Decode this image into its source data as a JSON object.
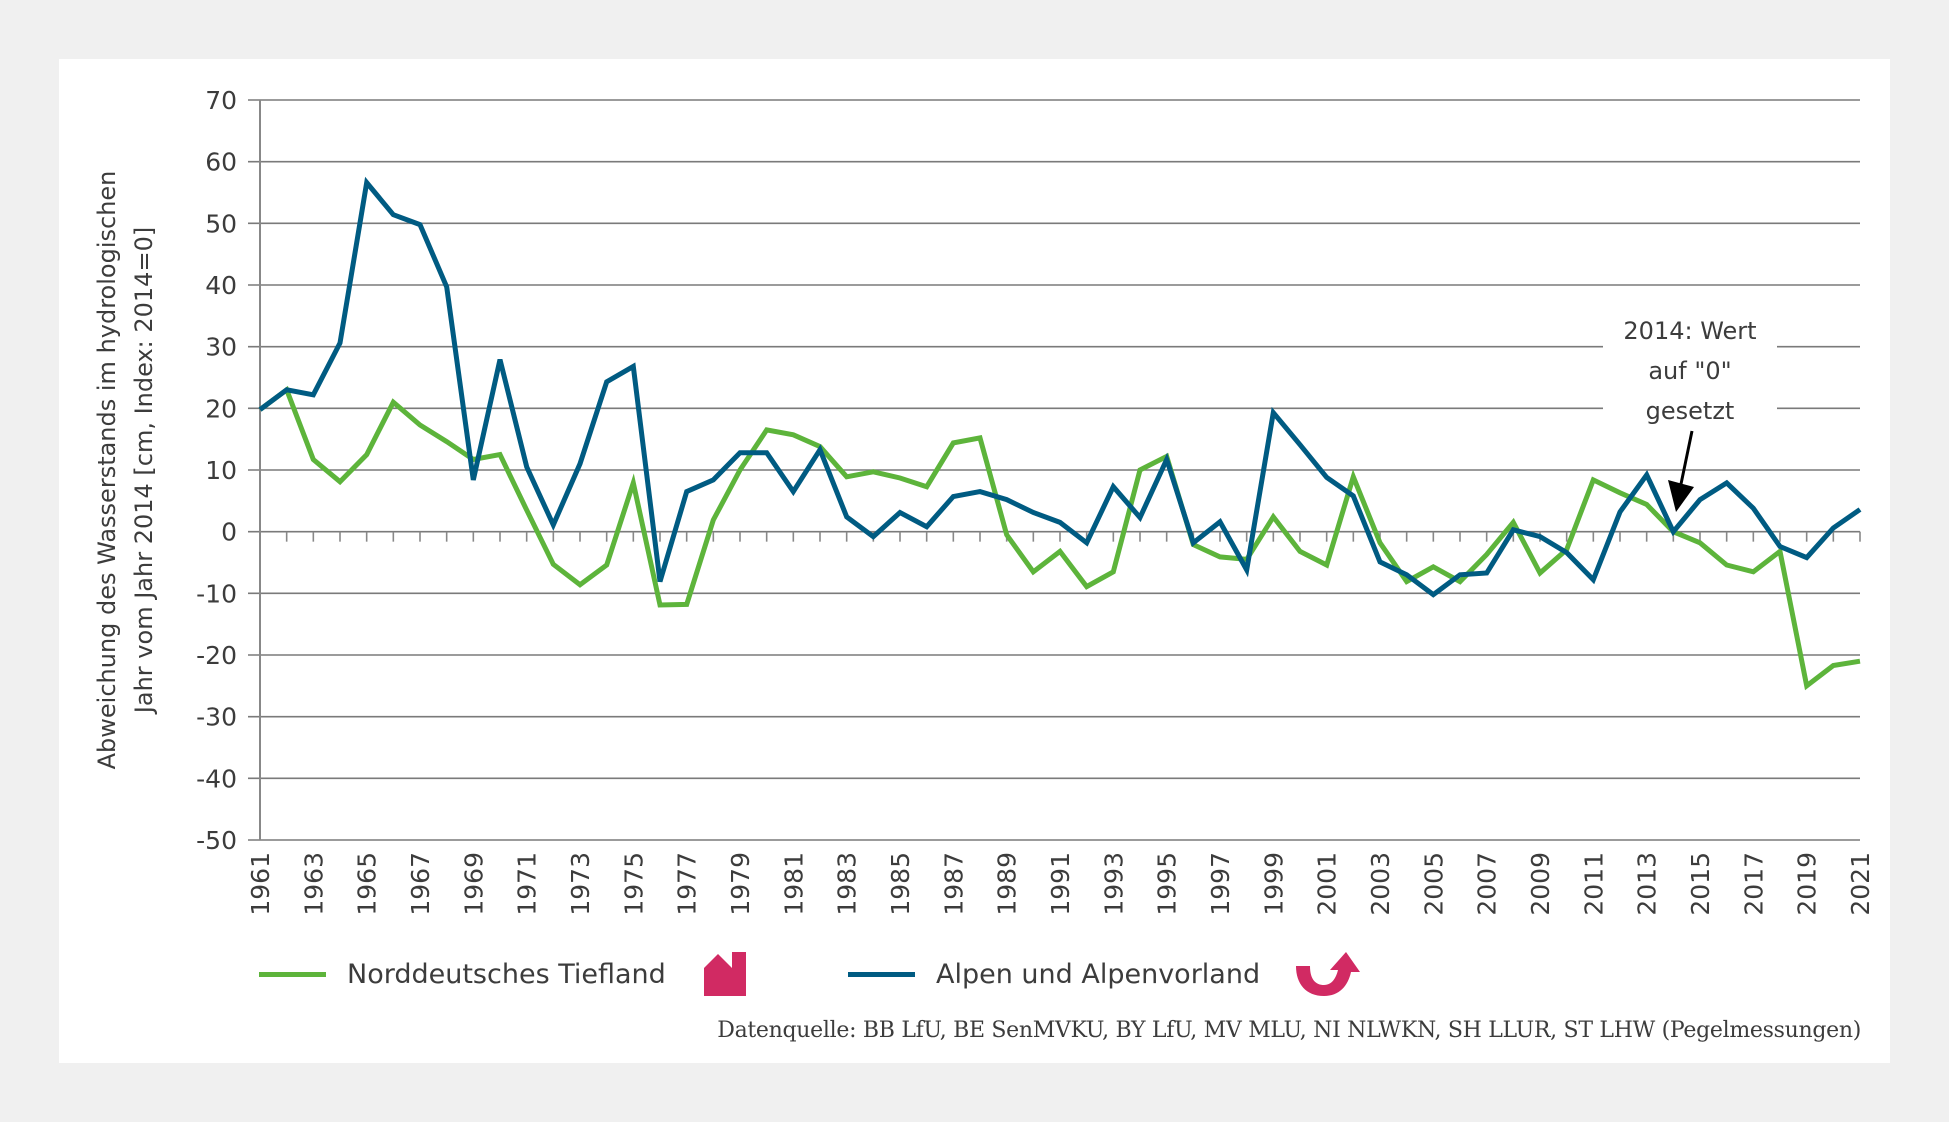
{
  "chart_data": {
    "type": "line",
    "ylabel_lines": [
      "Abweichung des Wasserstands im hydrologischen",
      "Jahr vom Jahr 2014 [cm, Index: 2014=0]"
    ],
    "ylim": [
      -50,
      70
    ],
    "yticks": [
      70,
      60,
      50,
      40,
      30,
      20,
      10,
      0,
      -10,
      -20,
      -30,
      -40,
      -50
    ],
    "xlim": [
      1961,
      2021
    ],
    "xtick_labels": [
      "1961",
      "1963",
      "1965",
      "1967",
      "1969",
      "1971",
      "1973",
      "1975",
      "1977",
      "1979",
      "1981",
      "1983",
      "1985",
      "1987",
      "1989",
      "1991",
      "1993",
      "1995",
      "1997",
      "1999",
      "2001",
      "2003",
      "2005",
      "2007",
      "2009",
      "2011",
      "2013",
      "2015",
      "2017",
      "2019",
      "2021"
    ],
    "grid": true,
    "legend_position": "bottom",
    "x": [
      1961,
      1962,
      1963,
      1964,
      1965,
      1966,
      1967,
      1968,
      1969,
      1970,
      1971,
      1972,
      1973,
      1974,
      1975,
      1976,
      1977,
      1978,
      1979,
      1980,
      1981,
      1982,
      1983,
      1984,
      1985,
      1986,
      1987,
      1988,
      1989,
      1990,
      1991,
      1992,
      1993,
      1994,
      1995,
      1996,
      1997,
      1998,
      1999,
      2000,
      2001,
      2002,
      2003,
      2004,
      2005,
      2006,
      2007,
      2008,
      2009,
      2010,
      2011,
      2012,
      2013,
      2014,
      2015,
      2016,
      2017,
      2018,
      2019,
      2020,
      2021
    ],
    "series": [
      {
        "name": "Norddeutsches Tiefland",
        "color": "#5db43b",
        "trend_icon": "trend-down-arrow-icon",
        "values": [
          19.8,
          23.0,
          11.7,
          8.1,
          12.5,
          21.0,
          17.3,
          14.6,
          11.7,
          12.5,
          3.5,
          -5.3,
          -8.6,
          -5.4,
          7.9,
          -11.9,
          -11.8,
          1.9,
          10.0,
          16.5,
          15.7,
          13.8,
          8.9,
          9.7,
          8.7,
          7.3,
          14.4,
          15.2,
          -0.5,
          -6.5,
          -3.2,
          -8.9,
          -6.5,
          10.0,
          12.2,
          -2.1,
          -4.1,
          -4.5,
          2.4,
          -3.2,
          -5.4,
          8.9,
          -1.8,
          -8.1,
          -5.7,
          -8.1,
          -3.7,
          1.5,
          -6.7,
          -2.9,
          8.4,
          6.3,
          4.4,
          0.0,
          -1.8,
          -5.4,
          -6.5,
          -3.2,
          -25.0,
          -21.7,
          -21.0
        ]
      },
      {
        "name": "Alpen und Alpenvorland",
        "color": "#005b82",
        "trend_icon": "trend-reversal-arrow-icon",
        "values": [
          19.8,
          23.0,
          22.2,
          30.6,
          56.6,
          51.4,
          49.8,
          39.7,
          8.4,
          27.9,
          10.5,
          1.1,
          11.0,
          24.3,
          26.8,
          -8.1,
          6.5,
          8.4,
          12.8,
          12.8,
          6.5,
          13.3,
          2.4,
          -0.8,
          3.1,
          0.8,
          5.7,
          6.5,
          5.2,
          3.1,
          1.5,
          -1.8,
          7.3,
          2.3,
          11.7,
          -1.8,
          1.6,
          -6.2,
          19.3,
          14.1,
          8.8,
          5.8,
          -4.9,
          -7.0,
          -10.2,
          -7.0,
          -6.7,
          0.3,
          -0.8,
          -3.4,
          -7.8,
          3.2,
          9.2,
          0.0,
          5.2,
          7.9,
          3.8,
          -2.4,
          -4.2,
          0.6,
          3.6
        ]
      }
    ],
    "annotation": {
      "year": 2014,
      "lines": [
        "2014: Wert",
        "auf \"0\"",
        "gesetzt"
      ]
    },
    "source": "Datenquelle: BB LfU, BE SenMVKU, BY LfU, MV MLU, NI NLWKN, SH LLUR, ST LHW (Pegelmessungen)",
    "icon_color": "#d12a63"
  }
}
